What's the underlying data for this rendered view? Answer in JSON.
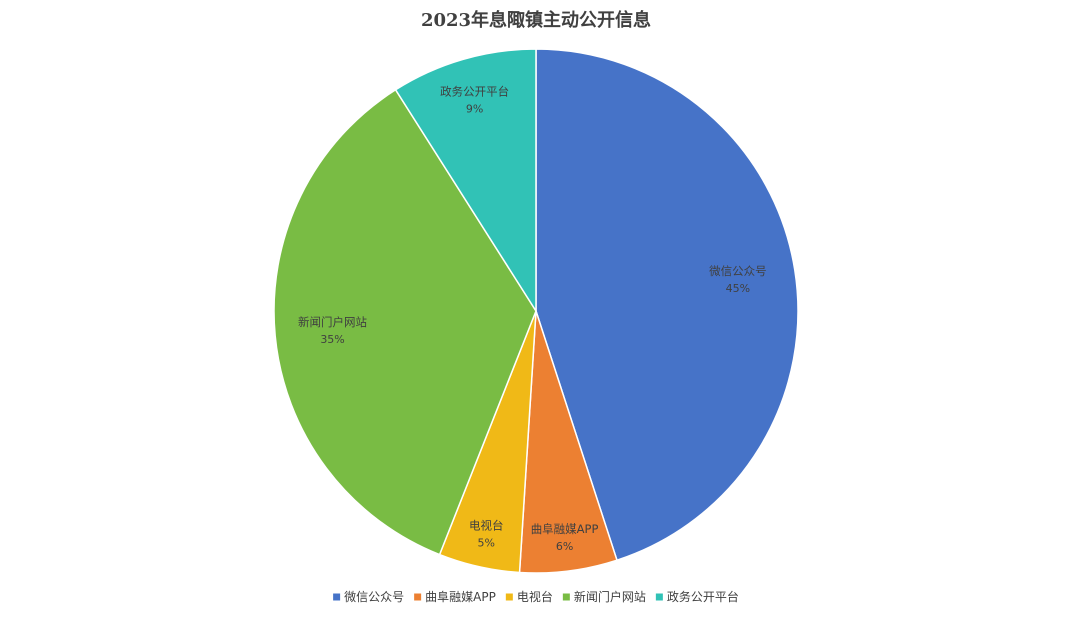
{
  "chart_data": {
    "type": "pie",
    "title": "2023年息陬镇主动公开信息",
    "categories": [
      "微信公众号",
      "曲阜融媒APP",
      "电视台",
      "新闻门户网站",
      "政务公开平台"
    ],
    "values": [
      45,
      6,
      5,
      35,
      9
    ],
    "data_labels": [
      "45%",
      "6%",
      "5%",
      "35%",
      "9%"
    ],
    "colors": [
      "#4673C8",
      "#EC8032",
      "#F0B917",
      "#79BC44",
      "#31C2B6"
    ],
    "start_angle": "12 o'clock",
    "direction": "clockwise",
    "legend": {
      "position": "bottom",
      "entries": [
        "微信公众号",
        "曲阜融媒APP",
        "电视台",
        "新闻门户网站",
        "政务公开平台"
      ]
    }
  }
}
